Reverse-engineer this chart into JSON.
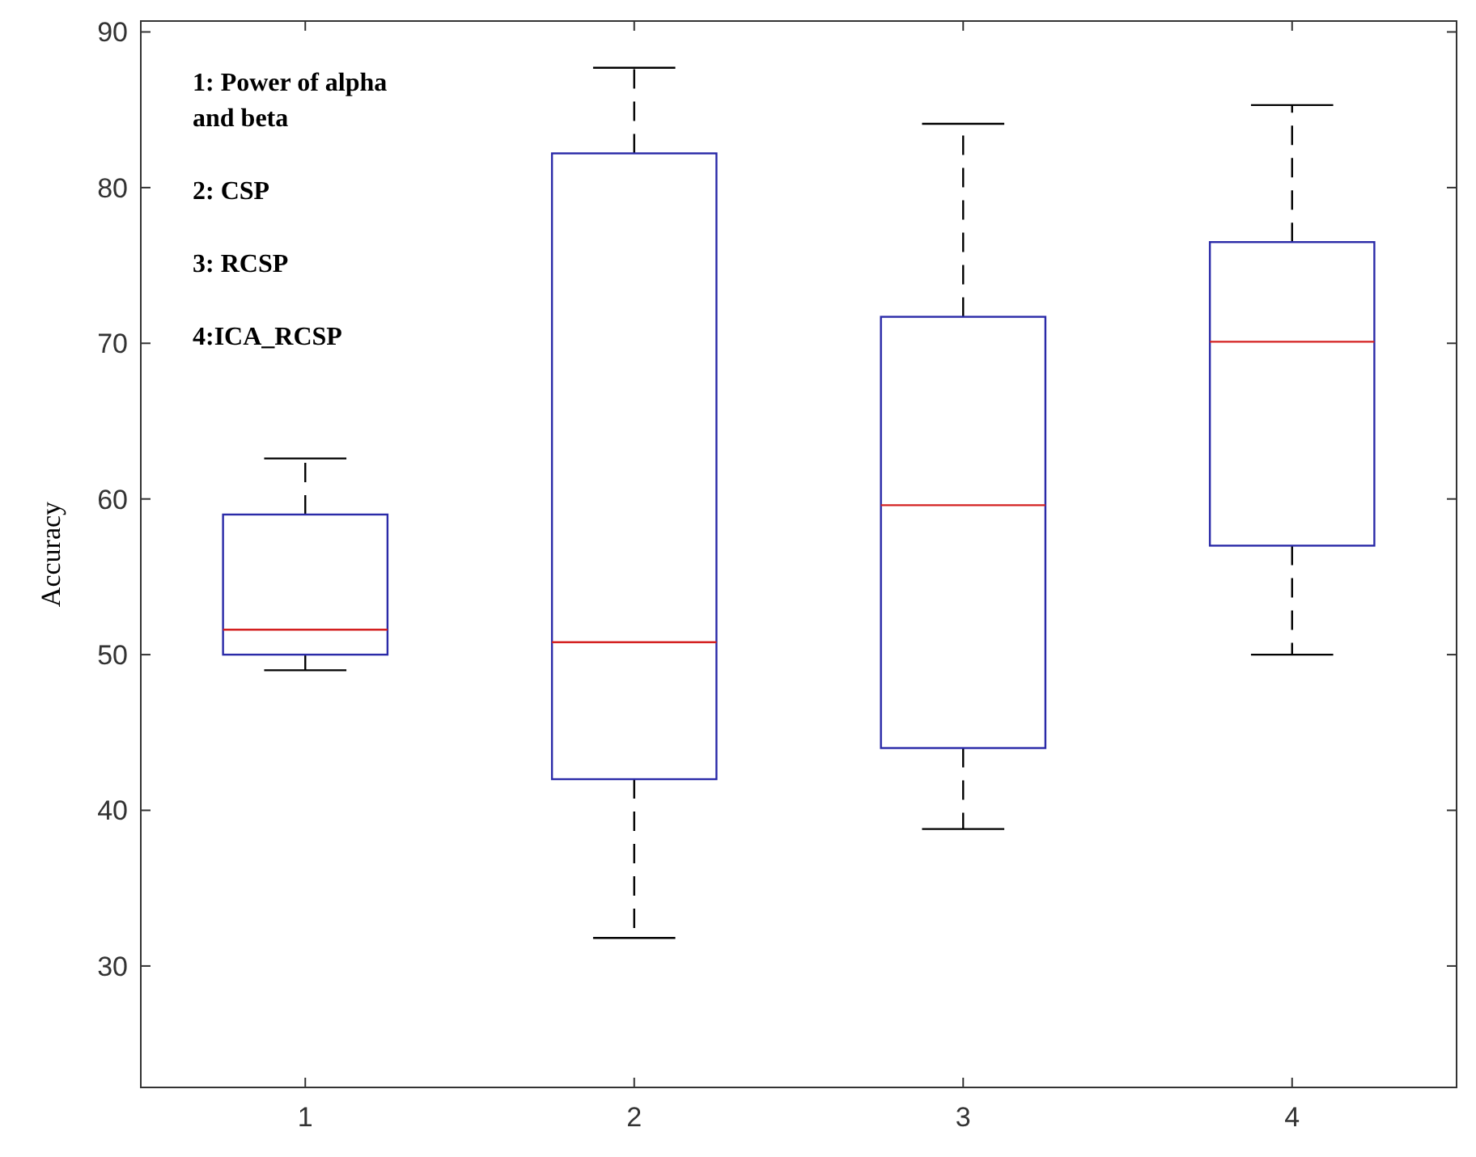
{
  "chart_data": {
    "type": "box",
    "ylabel": "Accuracy",
    "categories": [
      "1",
      "2",
      "3",
      "4"
    ],
    "ylim": [
      22.2,
      90.7
    ],
    "yticks": [
      30,
      40,
      50,
      60,
      70,
      80,
      90
    ],
    "grid": false,
    "color": "#2a2aa8",
    "boxes": [
      {
        "low": 49.0,
        "q1": 50.0,
        "median": 51.6,
        "q3": 59.0,
        "high": 62.6
      },
      {
        "low": 31.8,
        "q1": 42.0,
        "median": 50.8,
        "q3": 82.2,
        "high": 87.7
      },
      {
        "low": 38.8,
        "q1": 44.0,
        "median": 59.6,
        "q3": 71.7,
        "high": 84.1
      },
      {
        "low": 50.0,
        "q1": 57.0,
        "median": 70.1,
        "q3": 76.5,
        "high": 85.3
      }
    ],
    "annotations": [
      "1: Power of alpha\nand beta",
      "2: CSP",
      "3: RCSP",
      "4:ICA_RCSP"
    ]
  }
}
